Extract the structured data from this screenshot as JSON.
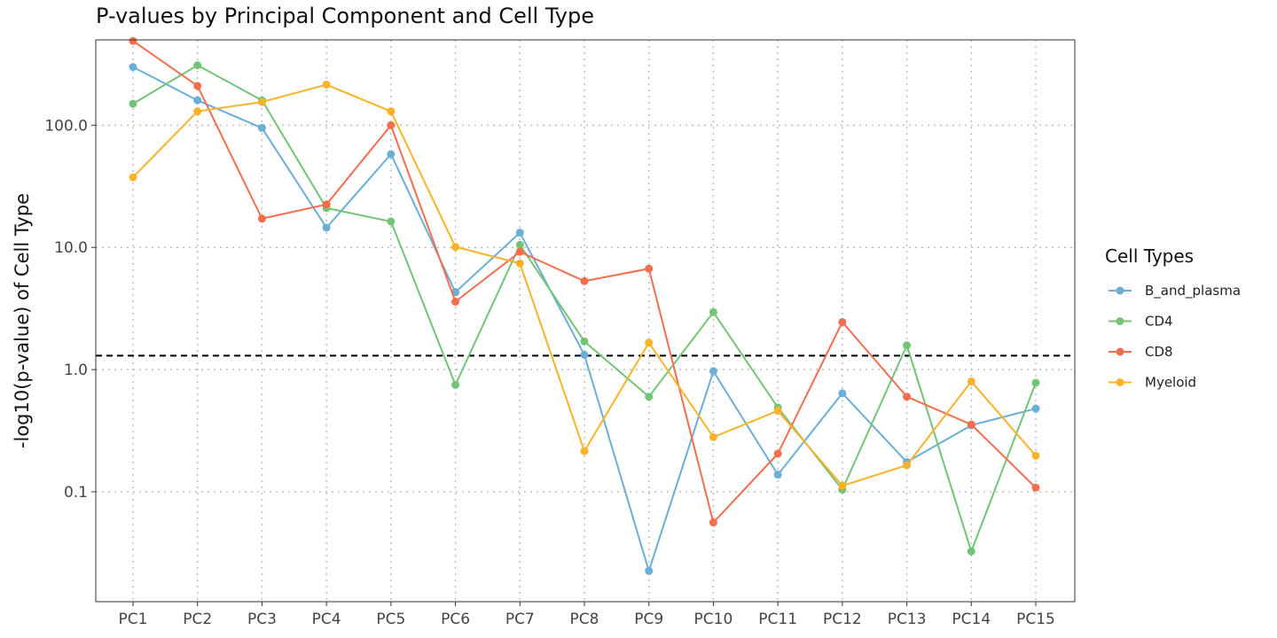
{
  "chart_data": {
    "type": "line",
    "title": "P-values by Principal Component and Cell Type",
    "xlabel": "",
    "ylabel": "-log10(p-value) of Cell Type",
    "y_scale": "log10",
    "ylim": [
      0.0126,
      500
    ],
    "y_ticks": [
      {
        "value": 0.1,
        "label": "0.1"
      },
      {
        "value": 1,
        "label": "1.0"
      },
      {
        "value": 10,
        "label": "10.0"
      },
      {
        "value": 100,
        "label": "100.0"
      }
    ],
    "categories": [
      "PC1",
      "PC2",
      "PC3",
      "PC4",
      "PC5",
      "PC6",
      "PC7",
      "PC8",
      "PC9",
      "PC10",
      "PC11",
      "PC12",
      "PC13",
      "PC14",
      "PC15"
    ],
    "reference_line": {
      "value": 1.3,
      "style": "dashed",
      "color": "#000000"
    },
    "grid": true,
    "legend": {
      "title": "Cell Types",
      "position": "right"
    },
    "series": [
      {
        "name": "B_and_plasma",
        "color": "#6BAED6",
        "values": [
          300,
          160,
          95,
          14.5,
          58,
          4.3,
          13.2,
          1.32,
          0.0225,
          0.97,
          0.138,
          0.64,
          0.175,
          0.35,
          0.48
        ]
      },
      {
        "name": "CD4",
        "color": "#74C476",
        "values": [
          150,
          310,
          160,
          21,
          16.3,
          0.75,
          10.5,
          1.7,
          0.6,
          2.95,
          0.49,
          0.104,
          1.58,
          0.0325,
          0.78
        ]
      },
      {
        "name": "CD8",
        "color": "#F46D4E",
        "values": [
          490,
          210,
          17.2,
          22.5,
          100,
          3.6,
          9.2,
          5.3,
          6.7,
          0.056,
          0.205,
          2.45,
          0.6,
          0.355,
          0.108
        ]
      },
      {
        "name": "Myeloid",
        "color": "#F8B32A",
        "values": [
          37.5,
          130,
          155,
          215,
          130,
          10.1,
          7.4,
          0.215,
          1.66,
          0.28,
          0.46,
          0.112,
          0.165,
          0.8,
          0.197
        ]
      }
    ]
  }
}
